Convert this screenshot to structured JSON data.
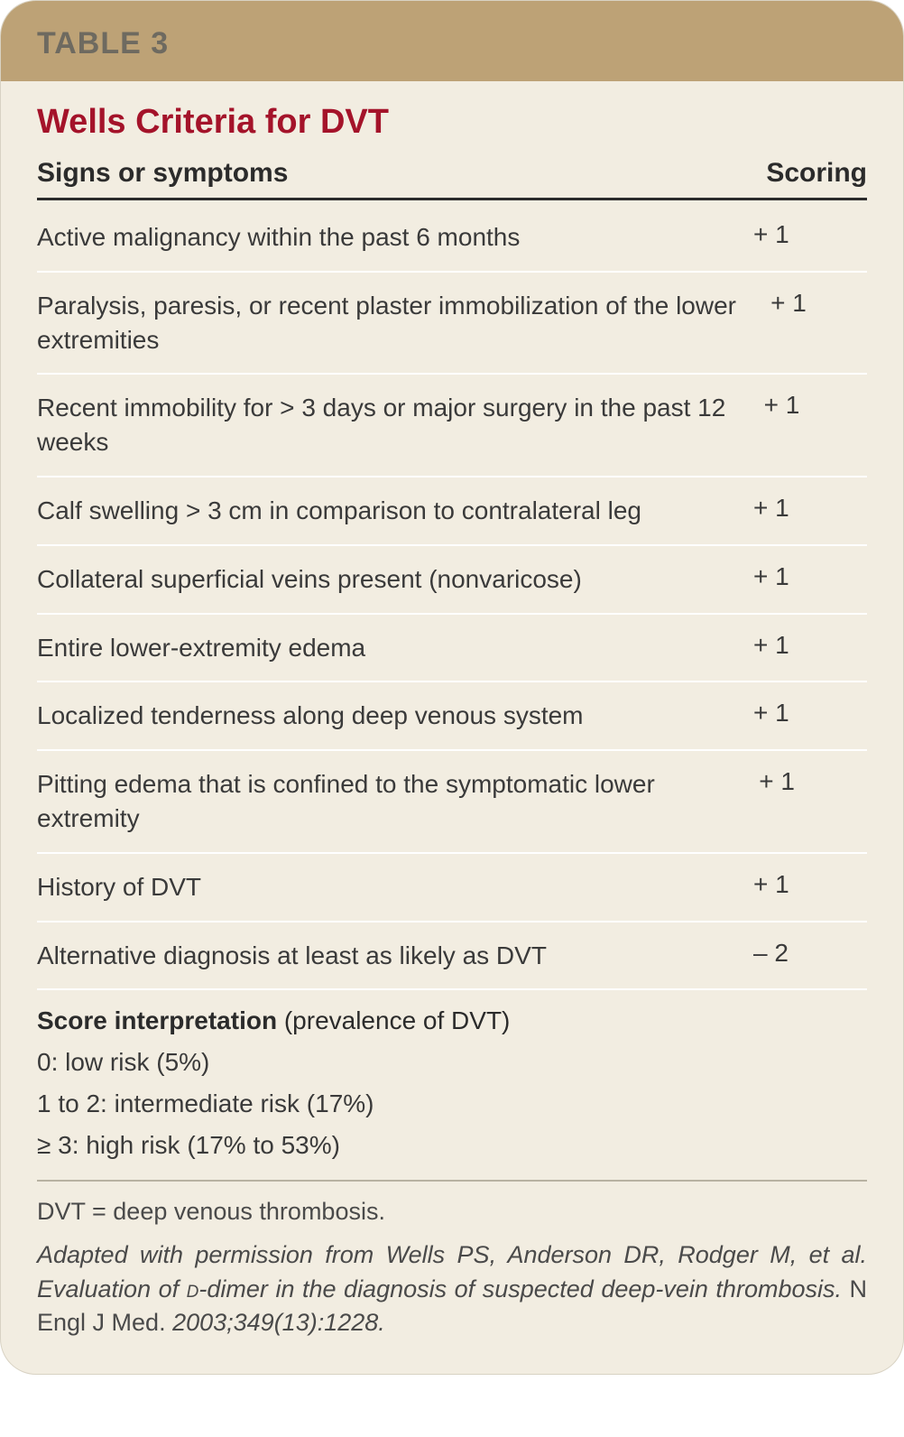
{
  "header": {
    "label": "TABLE 3"
  },
  "title": "Wells Criteria for DVT",
  "columns": {
    "left": "Signs or symptoms",
    "right": "Scoring"
  },
  "rows": [
    {
      "sign": "Active malignancy within the past 6 months",
      "score": "+ 1"
    },
    {
      "sign": "Paralysis, paresis, or recent plaster immobilization of the lower extremities",
      "score": "+ 1"
    },
    {
      "sign": "Recent immobility for > 3 days or major surgery in the past 12 weeks",
      "score": "+ 1"
    },
    {
      "sign": "Calf swelling > 3 cm in comparison to contralateral leg",
      "score": "+ 1"
    },
    {
      "sign": "Collateral superficial veins present (nonvaricose)",
      "score": "+ 1"
    },
    {
      "sign": "Entire lower-extremity edema",
      "score": "+ 1"
    },
    {
      "sign": "Localized tenderness along deep venous system",
      "score": "+ 1"
    },
    {
      "sign": "Pitting edema that is confined to the symptomatic lower extremity",
      "score": "+ 1"
    },
    {
      "sign": "History of DVT",
      "score": "+ 1"
    },
    {
      "sign": "Alternative diagnosis at least as likely as DVT",
      "score": "– 2"
    }
  ],
  "interpretation": {
    "heading_bold": "Score interpretation",
    "heading_rest": " (prevalence of DVT)",
    "lines": [
      "0: low risk (5%)",
      "1 to 2: intermediate risk (17%)",
      "≥ 3: high risk (17% to 53%)"
    ]
  },
  "abbrev": "DVT = deep venous thrombosis.",
  "citation": {
    "part1_italic": "Adapted with permission from Wells PS, Anderson DR, Rodger M, et al. Evaluation of ",
    "dimer_sc": "d",
    "part2_italic": "-dimer in the diagnosis of suspected deep-vein thrombosis.",
    "journal": " N Engl J Med. ",
    "ref_italic": "2003;349(13):1228."
  },
  "colors": {
    "card_bg": "#f2ede1",
    "header_bg": "#bda276",
    "header_text": "#6e6a60",
    "title": "#a4132a",
    "rule": "#2b2b2b",
    "row_divider": "#ffffff",
    "text": "#3a3a3a"
  }
}
